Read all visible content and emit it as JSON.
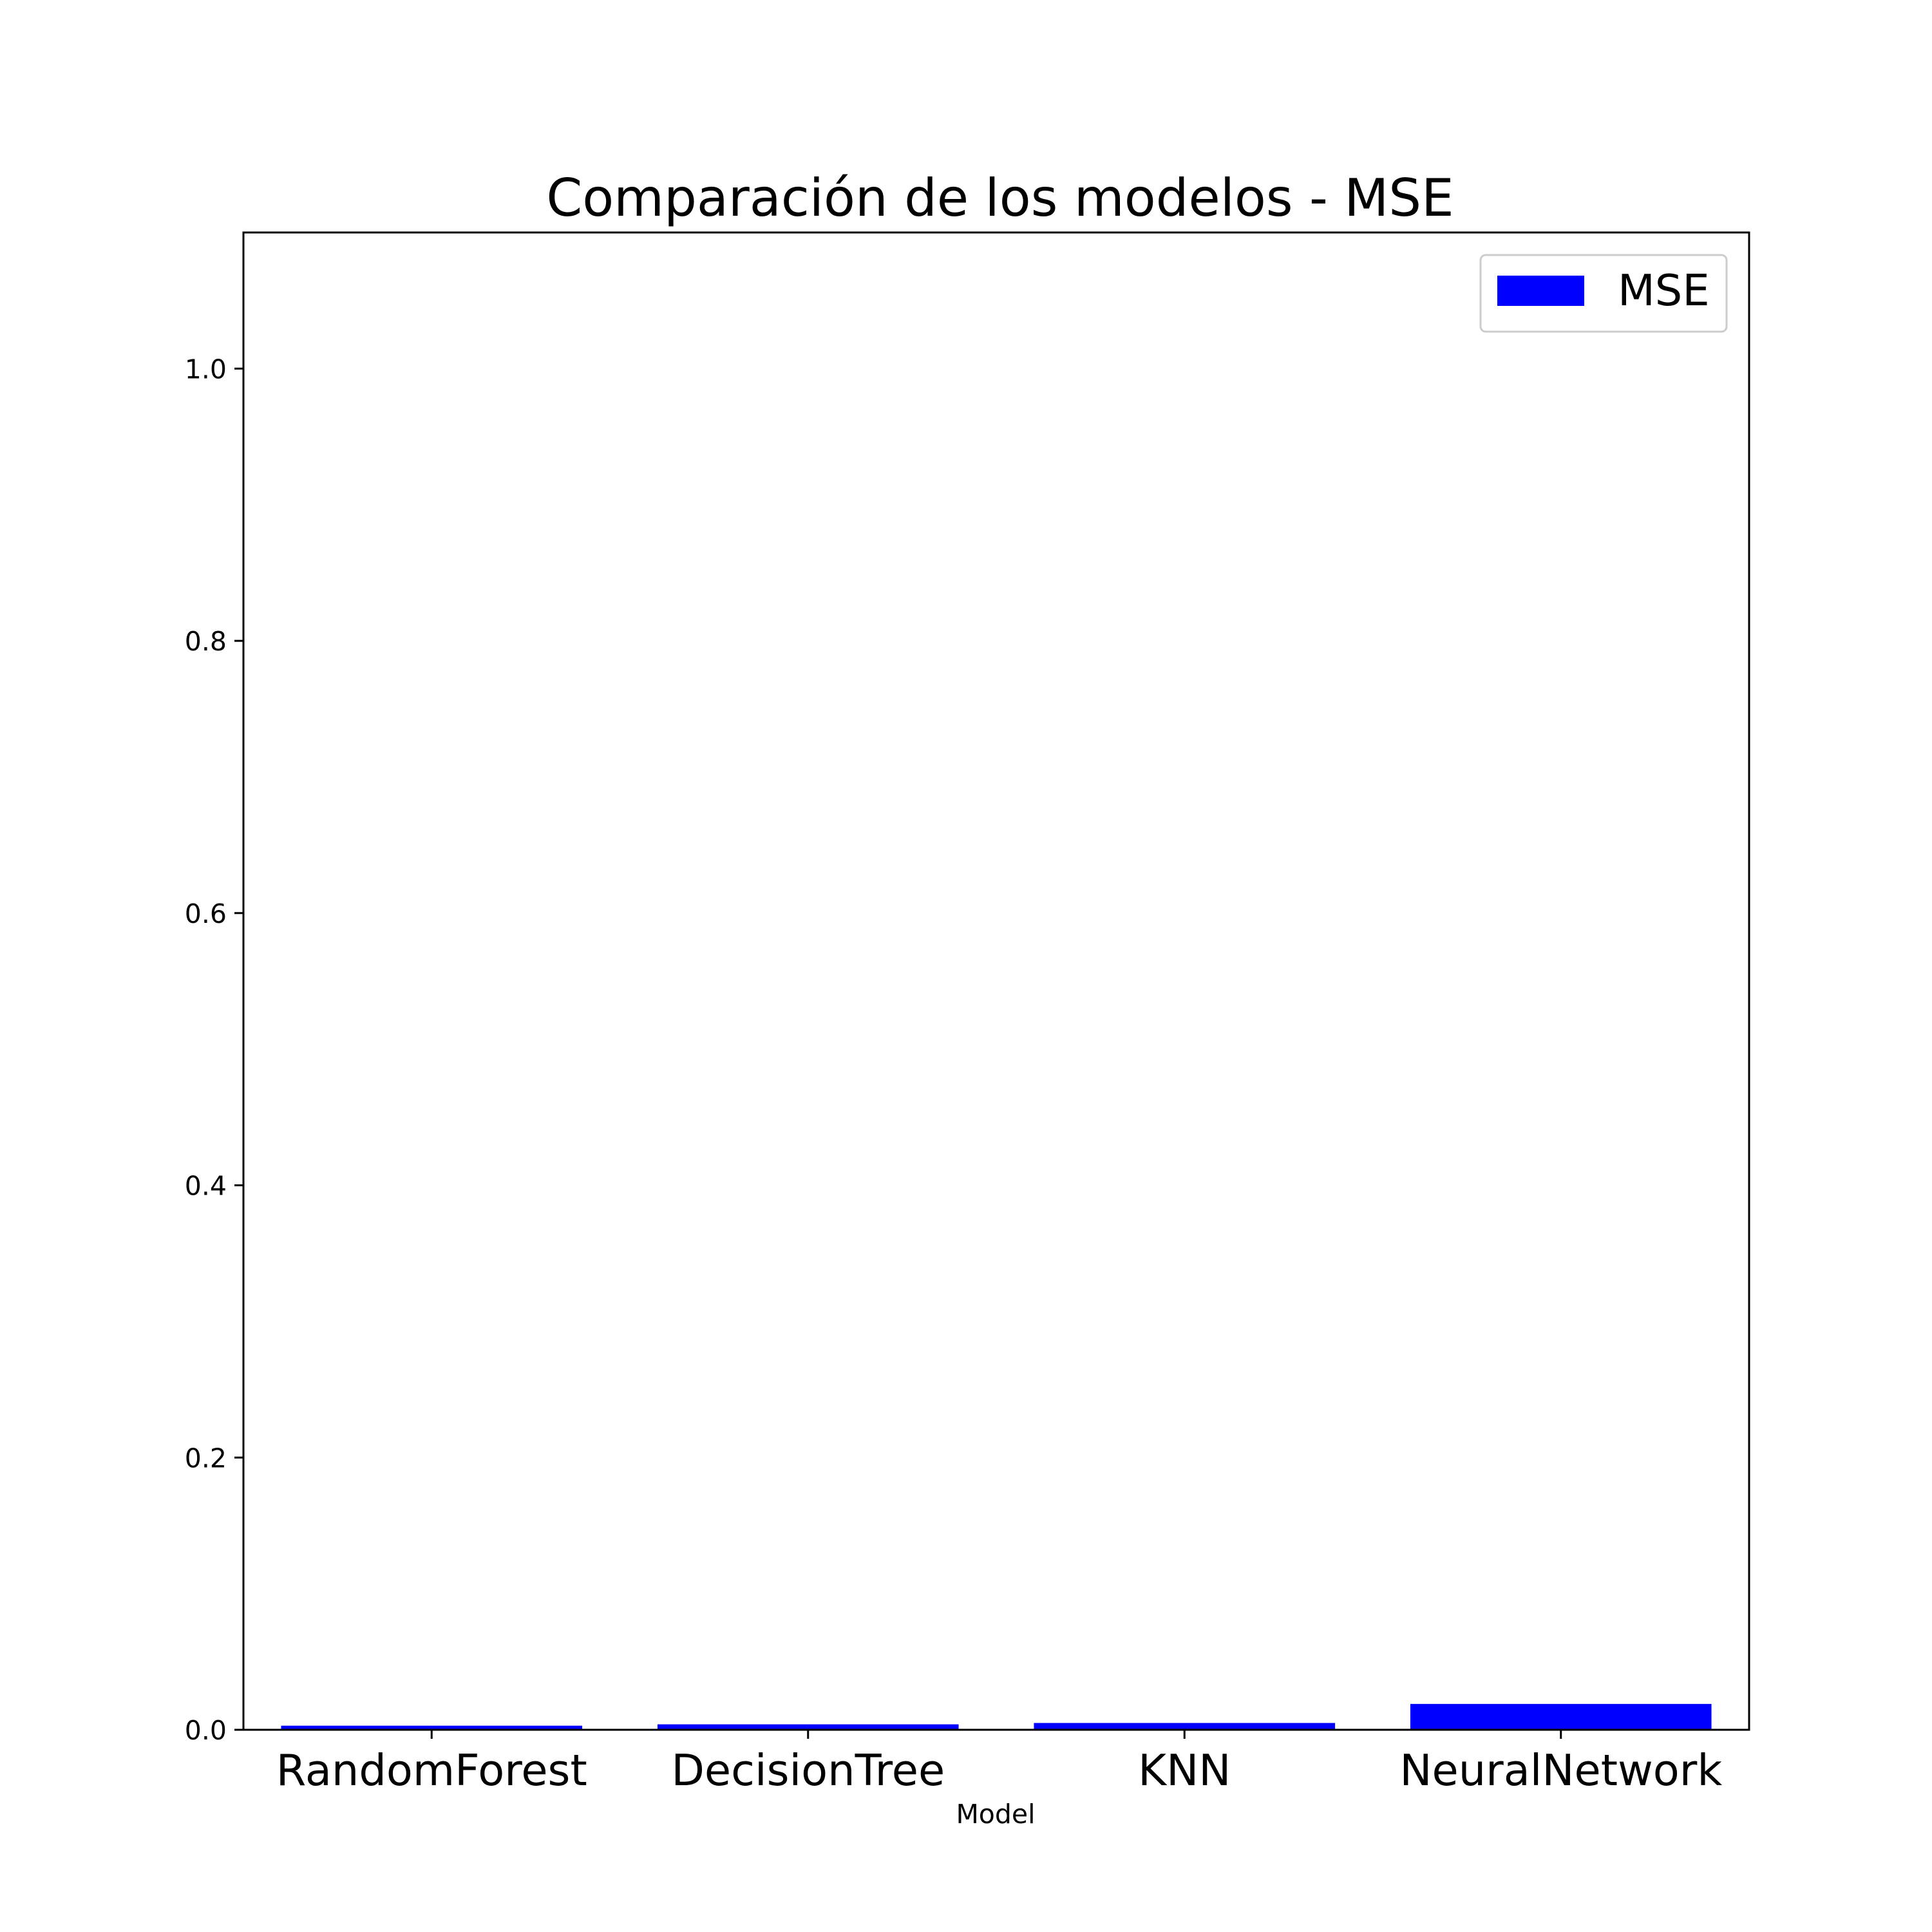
{
  "chart_data": {
    "type": "bar",
    "title": "Comparación de los modelos - MSE",
    "xlabel": "Model",
    "ylabel": "",
    "categories": [
      "RandomForest",
      "DecisionTree",
      "KNN",
      "NeuralNetwork"
    ],
    "series": [
      {
        "name": "MSE",
        "values": [
          0.003,
          0.004,
          0.005,
          0.019
        ],
        "color": "#0000ff"
      }
    ],
    "ylim": [
      0,
      1.1
    ],
    "yticks": [
      "0.0",
      "0.2",
      "0.4",
      "0.6",
      "0.8",
      "1.0"
    ],
    "grid": false,
    "legend_position": "top-right"
  }
}
